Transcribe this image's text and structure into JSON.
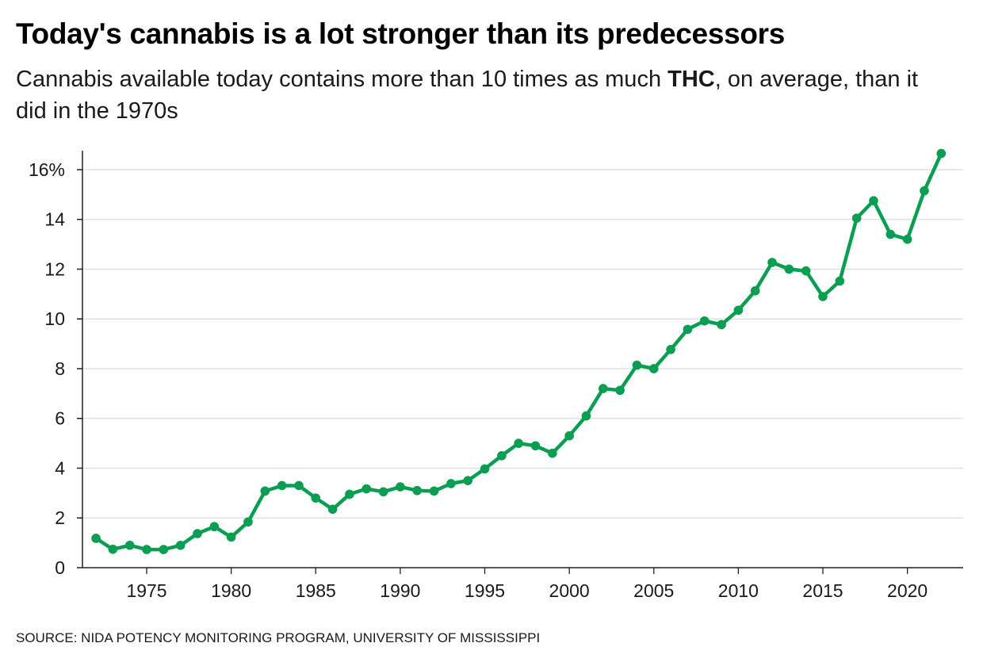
{
  "title": "Today's cannabis is a lot stronger than its predecessors",
  "subtitle": {
    "before": "Cannabis available today contains more than 10 times as much ",
    "highlight": "THC",
    "after": ", on average, than it did in the 1970s"
  },
  "source": "SOURCE: NIDA POTENCY MONITORING PROGRAM, UNIVERSITY OF MISSISSIPPI",
  "colors": {
    "line": "#0a9e52",
    "grid": "#dcdcdc",
    "axis": "#222222"
  },
  "chart_data": {
    "type": "line",
    "title": "",
    "xlabel": "",
    "ylabel": "",
    "xlim": [
      1971.2,
      2023.3
    ],
    "ylim": [
      0,
      16.7
    ],
    "grid": true,
    "x_ticks": [
      1975,
      1980,
      1985,
      1990,
      1995,
      2000,
      2005,
      2010,
      2015,
      2020
    ],
    "x_tick_labels": [
      "1975",
      "1980",
      "1985",
      "1990",
      "1995",
      "2000",
      "2005",
      "2010",
      "2015",
      "2020"
    ],
    "y_ticks": [
      0,
      2,
      4,
      6,
      8,
      10,
      12,
      14,
      16
    ],
    "y_tick_labels": [
      "0",
      "2",
      "4",
      "6",
      "8",
      "10",
      "12",
      "14",
      "16%"
    ],
    "series": [
      {
        "name": "",
        "x": [
          1972,
          1973,
          1974,
          1975,
          1976,
          1977,
          1978,
          1979,
          1980,
          1981,
          1982,
          1983,
          1984,
          1985,
          1986,
          1987,
          1988,
          1989,
          1990,
          1991,
          1992,
          1993,
          1994,
          1995,
          1996,
          1997,
          1998,
          1999,
          2000,
          2001,
          2002,
          2003,
          2004,
          2005,
          2006,
          2007,
          2008,
          2009,
          2010,
          2011,
          2012,
          2013,
          2014,
          2015,
          2016,
          2017,
          2018,
          2019,
          2020,
          2021,
          2022
        ],
        "values": [
          1.18,
          0.74,
          0.9,
          0.73,
          0.73,
          0.9,
          1.37,
          1.65,
          1.23,
          1.84,
          3.08,
          3.3,
          3.3,
          2.8,
          2.35,
          2.95,
          3.17,
          3.05,
          3.25,
          3.1,
          3.08,
          3.38,
          3.5,
          3.97,
          4.5,
          5.0,
          4.9,
          4.6,
          5.3,
          6.1,
          7.2,
          7.13,
          8.14,
          8.0,
          8.77,
          9.58,
          9.92,
          9.77,
          10.35,
          11.13,
          12.27,
          12.0,
          11.93,
          10.9,
          11.52,
          14.05,
          14.75,
          13.4,
          13.2,
          15.15,
          16.65
        ]
      }
    ]
  }
}
